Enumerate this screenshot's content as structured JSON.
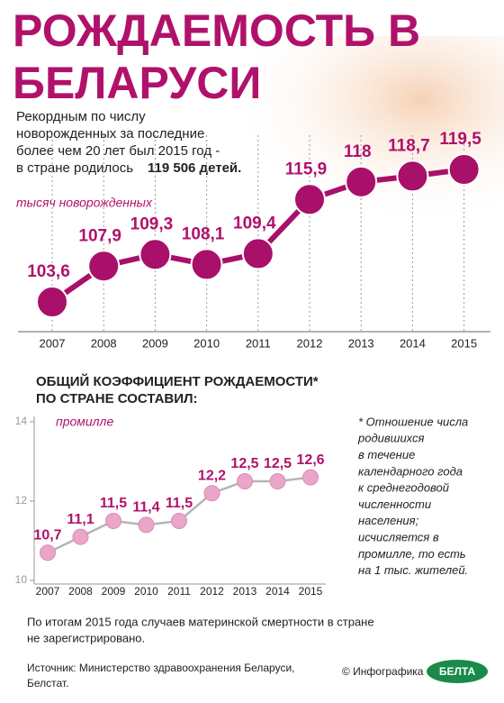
{
  "title": [
    "РОЖДАЕМОСТЬ В",
    "БЕЛАРУСИ"
  ],
  "intro": [
    "Рекордным по числу",
    "новорожденных за последние",
    "более чем 20 лет был 2015 год -",
    "в стране родилось"
  ],
  "intro_bold": "119 506 детей.",
  "chart_data": [
    {
      "type": "line",
      "y_label": "тысяч новорожденных",
      "categories": [
        "2007",
        "2008",
        "2009",
        "2010",
        "2011",
        "2012",
        "2013",
        "2014",
        "2015"
      ],
      "values": [
        103.6,
        107.9,
        109.3,
        108.1,
        109.4,
        115.9,
        118,
        118.7,
        119.5
      ],
      "value_labels": [
        "103,6",
        "107,9",
        "109,3",
        "108,1",
        "109,4",
        "115,9",
        "118",
        "118,7",
        "119,5"
      ],
      "color": "#a8106a"
    },
    {
      "type": "line",
      "title": [
        "ОБЩИЙ КОЭФФИЦИЕНТ РОЖДАЕМОСТИ*",
        "ПО СТРАНЕ СОСТАВИЛ:"
      ],
      "y_label": "промилле",
      "categories": [
        "2007",
        "2008",
        "2009",
        "2010",
        "2011",
        "2012",
        "2013",
        "2014",
        "2015"
      ],
      "values": [
        10.7,
        11.1,
        11.5,
        11.4,
        11.5,
        12.2,
        12.5,
        12.5,
        12.6
      ],
      "value_labels": [
        "10,7",
        "11,1",
        "11,5",
        "11,4",
        "11,5",
        "12,2",
        "12,5",
        "12,5",
        "12,6"
      ],
      "ylim": [
        10,
        14
      ],
      "yticks": [
        10,
        12,
        14
      ],
      "color": "#eaa6c9",
      "line_color": "#b5b5b5"
    }
  ],
  "note": [
    "* Отношение числа",
    "родившихся",
    "в течение",
    "календарного года",
    "к среднегодовой",
    "численности",
    "населения;",
    "исчисляется в",
    "промилле, то есть",
    "на 1 тыс. жителей."
  ],
  "footer": [
    "По итогам 2015 года случаев материнской смертности в стране",
    "не зарегистрировано."
  ],
  "source": [
    "Источник: Министерство здравоохранения Беларуси,",
    "Белстат."
  ],
  "copyright": "© Инфографика",
  "logo": "БЕЛТА"
}
